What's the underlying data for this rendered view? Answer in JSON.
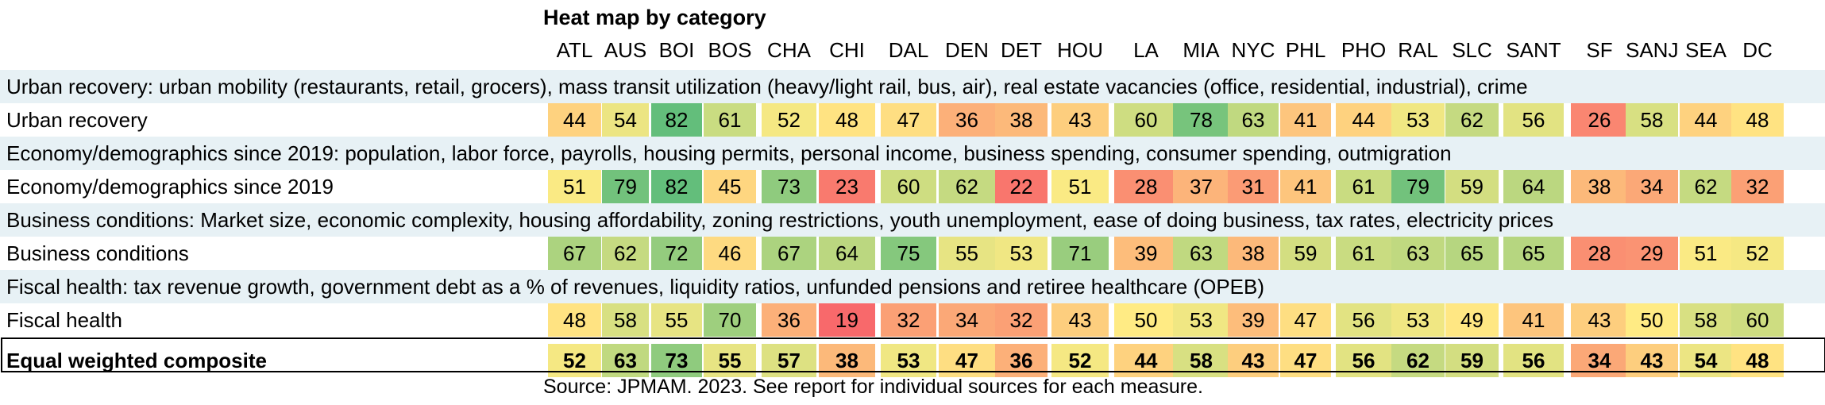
{
  "chart_data": {
    "type": "heatmap",
    "title": "Heat map by category",
    "columns": [
      "ATL",
      "AUS",
      "BOI",
      "BOS",
      "CHA",
      "CHI",
      "DAL",
      "DEN",
      "DET",
      "HOU",
      "LA",
      "MIA",
      "NYC",
      "PHL",
      "PHO",
      "RAL",
      "SLC",
      "SANT",
      "SF",
      "SANJ",
      "SEA",
      "DC"
    ],
    "color_scale": {
      "low": "#f8696b",
      "mid": "#ffeb84",
      "high": "#63be7b",
      "min": 19,
      "mid_value": 50,
      "max": 82
    },
    "sections": [
      {
        "description": "Urban recovery: urban mobility (restaurants, retail, grocers), mass transit utilization (heavy/light rail, bus, air), real estate vacancies (office, residential, industrial), crime",
        "label": "Urban recovery",
        "values": [
          44,
          54,
          82,
          61,
          52,
          48,
          47,
          36,
          38,
          43,
          60,
          78,
          63,
          41,
          44,
          53,
          62,
          56,
          26,
          58,
          44,
          48
        ]
      },
      {
        "description": "Economy/demographics since 2019: population, labor force, payrolls, housing permits, personal income, business spending, consumer spending, outmigration",
        "label": "Economy/demographics since 2019",
        "values": [
          51,
          79,
          82,
          45,
          73,
          23,
          60,
          62,
          22,
          51,
          28,
          37,
          31,
          41,
          61,
          79,
          59,
          64,
          38,
          34,
          62,
          32
        ]
      },
      {
        "description": "Business conditions: Market size, economic complexity, housing affordability, zoning restrictions, youth unemployment, ease of doing business, tax rates, electricity prices",
        "label": "Business conditions",
        "values": [
          67,
          62,
          72,
          46,
          67,
          64,
          75,
          55,
          53,
          71,
          39,
          63,
          38,
          59,
          61,
          63,
          65,
          65,
          28,
          29,
          51,
          52
        ]
      },
      {
        "description": "Fiscal health: tax revenue growth, government debt as a % of revenues, liquidity ratios, unfunded pensions and retiree healthcare (OPEB)",
        "label": "Fiscal health",
        "values": [
          48,
          58,
          55,
          70,
          36,
          19,
          32,
          34,
          32,
          43,
          50,
          53,
          39,
          47,
          56,
          53,
          49,
          41,
          43,
          50,
          58,
          60
        ]
      }
    ],
    "composite": {
      "label": "Equal weighted composite",
      "values": [
        52,
        63,
        73,
        55,
        57,
        38,
        53,
        47,
        36,
        52,
        44,
        58,
        43,
        47,
        56,
        62,
        59,
        56,
        34,
        43,
        54,
        48
      ]
    },
    "source": "Source: JPMAM. 2023.  See report for individual sources for each measure."
  }
}
